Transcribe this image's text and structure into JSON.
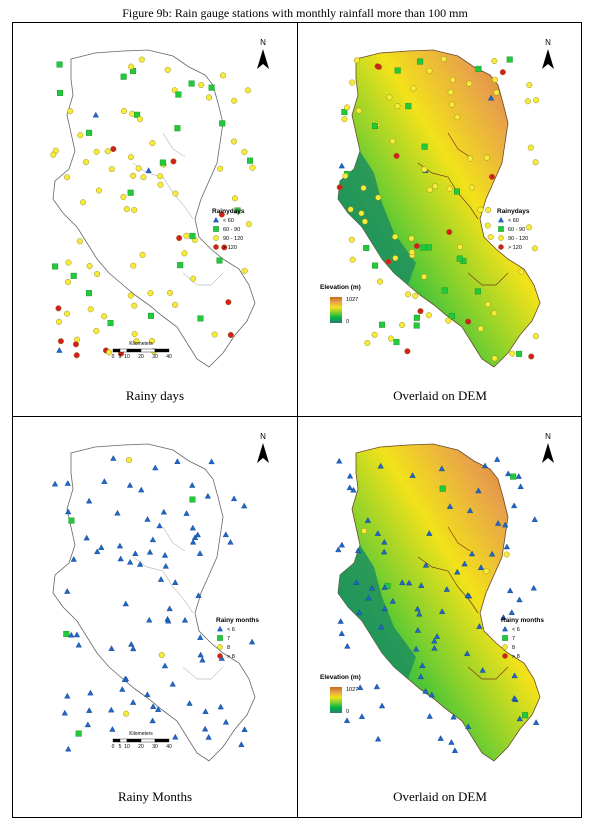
{
  "figure_title": "Figure 9b: Rain gauge stations with monthly rainfall more than 100 mm",
  "north_label": "N",
  "scalebar": {
    "unit": "Kilometers",
    "ticks": [
      "0",
      "5",
      "10",
      "20",
      "30",
      "40"
    ]
  },
  "elevation_legend": {
    "title": "Elevation (m)",
    "max": "1027",
    "min": "0",
    "colors": [
      "#2e7d6b",
      "#00b34a",
      "#7ccf2e",
      "#f2e21a",
      "#e8a24a",
      "#c86a1c"
    ]
  },
  "panels": [
    {
      "caption": "Rainy days",
      "legend_title": "Rainydays",
      "legend_items": [
        {
          "label": "< 60",
          "shape": "triangle",
          "color": "#1f66c7"
        },
        {
          "label": "60 - 90",
          "shape": "square",
          "color": "#22c93a"
        },
        {
          "label": "90 - 120",
          "shape": "circle",
          "color": "#f6ea3a"
        },
        {
          "label": "> 120",
          "shape": "circle",
          "color": "#d21f1f"
        }
      ],
      "dem": false
    },
    {
      "caption": "Overlaid on DEM",
      "legend_title": "Rainydays",
      "legend_items": [
        {
          "label": "< 60",
          "shape": "triangle",
          "color": "#1f66c7"
        },
        {
          "label": "60 - 90",
          "shape": "square",
          "color": "#22c93a"
        },
        {
          "label": "90 - 120",
          "shape": "circle",
          "color": "#f6ea3a"
        },
        {
          "label": "> 120",
          "shape": "circle",
          "color": "#d21f1f"
        }
      ],
      "dem": true
    },
    {
      "caption": "Rainy Months",
      "legend_title": "Rainy months",
      "legend_items": [
        {
          "label": "< 6",
          "shape": "triangle",
          "color": "#1f66c7"
        },
        {
          "label": "7",
          "shape": "square",
          "color": "#22c93a"
        },
        {
          "label": "8",
          "shape": "circle",
          "color": "#f6ea3a"
        },
        {
          "label": "> 8",
          "shape": "circle",
          "color": "#d21f1f"
        }
      ],
      "dem": false
    },
    {
      "caption": "Overlaid on DEM",
      "legend_title": "Rainy months",
      "legend_items": [
        {
          "label": "< 6",
          "shape": "triangle",
          "color": "#1f66c7"
        },
        {
          "label": "7",
          "shape": "square",
          "color": "#22c93a"
        },
        {
          "label": "8",
          "shape": "circle",
          "color": "#f6ea3a"
        },
        {
          "label": "> 8",
          "shape": "circle",
          "color": "#d21f1f"
        }
      ],
      "dem": true
    }
  ]
}
